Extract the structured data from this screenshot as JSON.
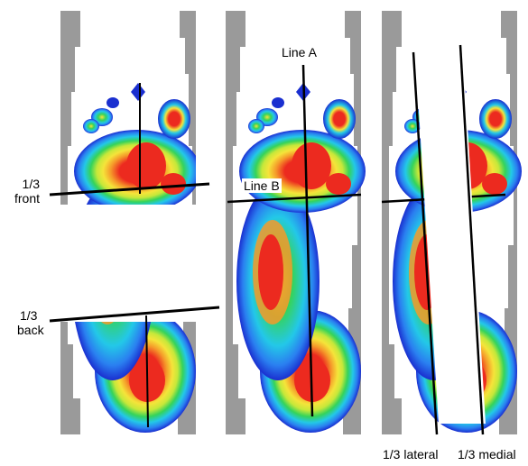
{
  "labels": {
    "front_line_1": "1/3",
    "front_line_2": "front",
    "back_line_1": "1/3",
    "back_line_2": "back",
    "line_a": "Line A",
    "line_b": "Line B",
    "lateral": "1/3 lateral",
    "medial": "1/3 medial"
  },
  "colors": {
    "grid_gray": "#9a9a9a",
    "pressure_scale": [
      "#1a2fd0",
      "#2a7ff0",
      "#23c8e8",
      "#35d35a",
      "#c6e83a",
      "#f5e43a",
      "#f59a2a",
      "#ec2a1f"
    ],
    "line": "#000000"
  }
}
